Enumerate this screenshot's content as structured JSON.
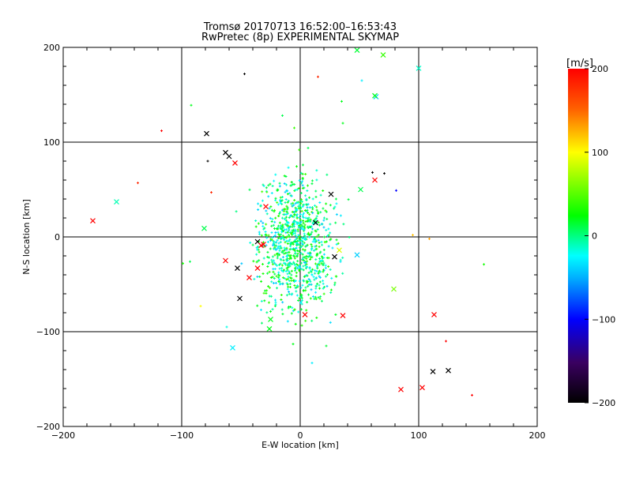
{
  "chart_data": {
    "type": "scatter",
    "title": "Tromsø 20170713 16:52:00–16:53:43",
    "subtitle": "RwPretec (8p) EXPERIMENTAL SKYMAP",
    "xlabel": "E-W location [km]",
    "ylabel": "N-S location [km]",
    "xlim": [
      -200,
      200
    ],
    "ylim": [
      -200,
      200
    ],
    "xticks": [
      -200,
      -100,
      0,
      100,
      200
    ],
    "yticks": [
      -200,
      -100,
      0,
      100,
      200
    ],
    "grid": true,
    "colorbar": {
      "label": "[m/s]",
      "range": [
        -200,
        200
      ],
      "ticks": [
        200,
        100,
        0,
        -100,
        -200
      ],
      "placement": "right"
    },
    "crosses": [
      {
        "x": -79,
        "y": 109,
        "v": -200
      },
      {
        "x": -63,
        "y": 89,
        "v": -200
      },
      {
        "x": -60,
        "y": 85,
        "v": -200
      },
      {
        "x": -55,
        "y": 78,
        "v": 200
      },
      {
        "x": -175,
        "y": 17,
        "v": 200
      },
      {
        "x": -155,
        "y": 37,
        "v": -10
      },
      {
        "x": -81,
        "y": 9,
        "v": 10
      },
      {
        "x": -36,
        "y": -5,
        "v": -200
      },
      {
        "x": -33,
        "y": -9,
        "v": 200
      },
      {
        "x": -31,
        "y": -8,
        "v": 200
      },
      {
        "x": -63,
        "y": -25,
        "v": 200
      },
      {
        "x": -53,
        "y": -33,
        "v": -200
      },
      {
        "x": -36,
        "y": -33,
        "v": 200
      },
      {
        "x": -43,
        "y": -43,
        "v": 200
      },
      {
        "x": -51,
        "y": -65,
        "v": -200
      },
      {
        "x": -29,
        "y": 32,
        "v": 200
      },
      {
        "x": 26,
        "y": 45,
        "v": -200
      },
      {
        "x": 51,
        "y": 50,
        "v": 10
      },
      {
        "x": 63,
        "y": 60,
        "v": 200
      },
      {
        "x": 64,
        "y": 148,
        "v": -40
      },
      {
        "x": 63,
        "y": 149,
        "v": 20
      },
      {
        "x": 70,
        "y": 192,
        "v": 40
      },
      {
        "x": 48,
        "y": 197,
        "v": 15
      },
      {
        "x": 100,
        "y": 178,
        "v": -15
      },
      {
        "x": 13,
        "y": 15,
        "v": -200
      },
      {
        "x": 29,
        "y": -21,
        "v": -200
      },
      {
        "x": 33,
        "y": -14,
        "v": 90
      },
      {
        "x": 79,
        "y": -55,
        "v": 60
      },
      {
        "x": 4,
        "y": -82,
        "v": 200
      },
      {
        "x": 36,
        "y": -83,
        "v": 200
      },
      {
        "x": 113,
        "y": -82,
        "v": 200
      },
      {
        "x": 112,
        "y": -142,
        "v": -200
      },
      {
        "x": 125,
        "y": -141,
        "v": -200
      },
      {
        "x": 85,
        "y": -161,
        "v": 200
      },
      {
        "x": 103,
        "y": -159,
        "v": 200
      },
      {
        "x": -57,
        "y": -117,
        "v": -30
      },
      {
        "x": -25,
        "y": -87,
        "v": 20
      },
      {
        "x": -26,
        "y": -97,
        "v": 20
      },
      {
        "x": 48,
        "y": -19,
        "v": -40
      }
    ],
    "dots": [
      {
        "x": -117,
        "y": 112,
        "v": 200
      },
      {
        "x": -47,
        "y": 172,
        "v": -200
      },
      {
        "x": 15,
        "y": 169,
        "v": 180
      },
      {
        "x": 61,
        "y": 68,
        "v": -200
      },
      {
        "x": 71,
        "y": 67,
        "v": -200
      },
      {
        "x": 81,
        "y": 49,
        "v": -100
      },
      {
        "x": 145,
        "y": -167,
        "v": 200
      },
      {
        "x": 123,
        "y": -110,
        "v": 200
      },
      {
        "x": 155,
        "y": -29,
        "v": 30
      },
      {
        "x": -92,
        "y": 139,
        "v": 20
      },
      {
        "x": -137,
        "y": 57,
        "v": 180
      },
      {
        "x": -93,
        "y": -26,
        "v": 10
      },
      {
        "x": -84,
        "y": -73,
        "v": 100
      },
      {
        "x": 95,
        "y": 2,
        "v": 120
      },
      {
        "x": 109,
        "y": -2,
        "v": 130
      },
      {
        "x": 35,
        "y": 143,
        "v": 20
      },
      {
        "x": -5,
        "y": 115,
        "v": 40
      },
      {
        "x": -15,
        "y": 128,
        "v": 10
      },
      {
        "x": 52,
        "y": 165,
        "v": -30
      },
      {
        "x": 36,
        "y": 120,
        "v": 20
      },
      {
        "x": -62,
        "y": -95,
        "v": -20
      },
      {
        "x": 22,
        "y": -115,
        "v": 15
      },
      {
        "x": -6,
        "y": -113,
        "v": 20
      },
      {
        "x": 10,
        "y": -133,
        "v": -30
      },
      {
        "x": -99,
        "y": -28,
        "v": 30
      },
      {
        "x": -78,
        "y": 80,
        "v": -200
      },
      {
        "x": -75,
        "y": 47,
        "v": 180
      }
    ],
    "cloud": {
      "count": 950,
      "center": [
        -3,
        -8
      ],
      "sd": [
        16,
        34
      ],
      "value_range": [
        -45,
        45
      ]
    }
  }
}
